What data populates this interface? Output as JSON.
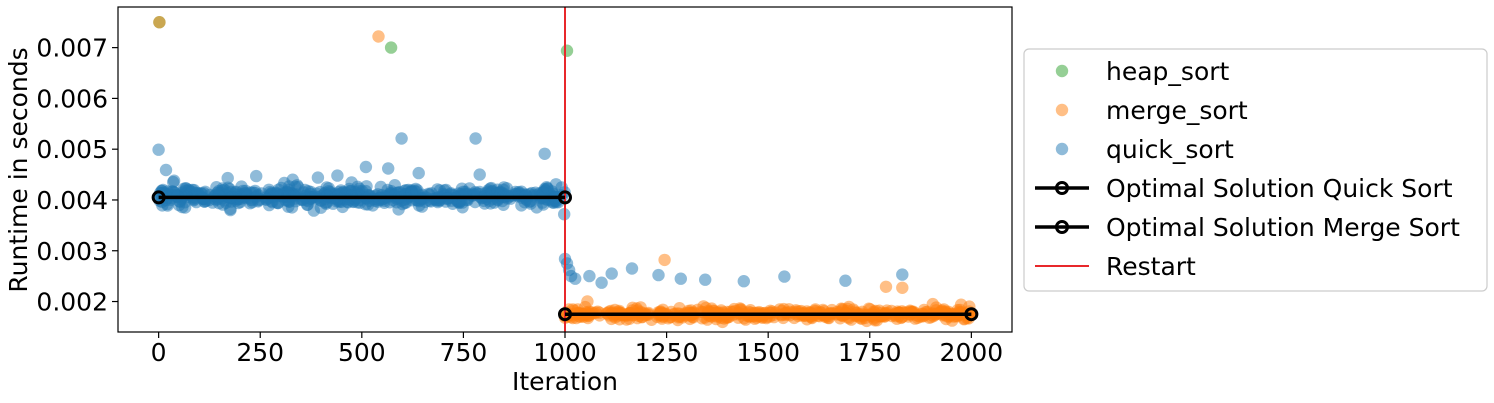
{
  "chart_data": {
    "type": "scatter",
    "xlabel": "Iteration",
    "ylabel": "Runtime in seconds",
    "xlim": [
      -100,
      2100
    ],
    "ylim": [
      0.0014,
      0.0078
    ],
    "x_ticks": [
      0,
      250,
      500,
      750,
      1000,
      1250,
      1500,
      1750,
      2000
    ],
    "x_tick_labels": [
      "0",
      "250",
      "500",
      "750",
      "1000",
      "1250",
      "1500",
      "1750",
      "2000"
    ],
    "y_ticks": [
      0.002,
      0.003,
      0.004,
      0.005,
      0.006,
      0.007
    ],
    "y_tick_labels": [
      "0.002",
      "0.003",
      "0.004",
      "0.005",
      "0.006",
      "0.007"
    ],
    "grid": false,
    "legend_position": "outside-right",
    "restart_iteration": 1000,
    "series": [
      {
        "name": "heap_sort",
        "kind": "points",
        "color": "#2ca02c",
        "x": [
          2,
          572,
          1005
        ],
        "y": [
          0.0075,
          0.007,
          0.00694
        ]
      },
      {
        "name": "merge_sort",
        "kind": "points",
        "color": "#ff7f0e",
        "x": [
          2,
          541,
          1055,
          1245,
          1790,
          1830,
          1905,
          1995
        ],
        "y": [
          0.0075,
          0.00722,
          0.002,
          0.00282,
          0.00229,
          0.00227,
          0.00195,
          0.0019
        ],
        "cluster": {
          "x_start": 1000,
          "x_end": 2000,
          "center": 0.00175,
          "spread": 5e-05,
          "count": 480,
          "seed": 7
        }
      },
      {
        "name": "quick_sort",
        "kind": "points",
        "color": "#1f77b4",
        "x": [
          0,
          18,
          38,
          170,
          240,
          330,
          392,
          440,
          510,
          565,
          598,
          640,
          780,
          790,
          950,
          998,
          1000,
          1005,
          1010,
          1015,
          1025,
          1060,
          1090,
          1115,
          1165,
          1230,
          1285,
          1345,
          1440,
          1540,
          1690,
          1830
        ],
        "y": [
          0.00499,
          0.00459,
          0.00438,
          0.00443,
          0.00447,
          0.0044,
          0.00444,
          0.00448,
          0.00465,
          0.00462,
          0.00521,
          0.00453,
          0.00521,
          0.0045,
          0.00491,
          0.00372,
          0.00284,
          0.00275,
          0.00262,
          0.0025,
          0.00245,
          0.0025,
          0.00237,
          0.00255,
          0.00265,
          0.00252,
          0.00245,
          0.00243,
          0.0024,
          0.00249,
          0.00241,
          0.00253
        ],
        "cluster": {
          "x_start": 0,
          "x_end": 1000,
          "center": 0.00407,
          "spread": 9e-05,
          "count": 620,
          "seed": 3
        }
      },
      {
        "name": "Optimal Solution Quick Sort",
        "kind": "line",
        "color": "#000000",
        "x": [
          0,
          1000
        ],
        "y": [
          0.00405,
          0.00405
        ]
      },
      {
        "name": "Optimal Solution Merge Sort",
        "kind": "line",
        "color": "#000000",
        "x": [
          1000,
          2000
        ],
        "y": [
          0.00175,
          0.00175
        ]
      },
      {
        "name": "Restart",
        "kind": "vline",
        "color": "#e8282b",
        "x": [
          1000
        ]
      }
    ]
  }
}
